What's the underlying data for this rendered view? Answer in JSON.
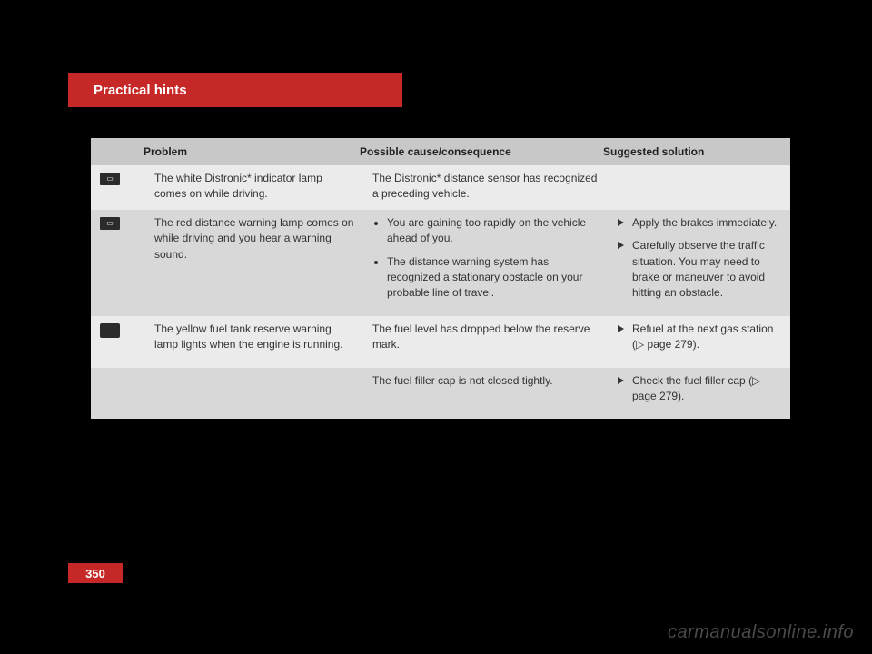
{
  "header": {
    "title": "Practical hints"
  },
  "table": {
    "columns": {
      "problem": "Problem",
      "cause": "Possible cause/consequence",
      "solution": "Suggested solution"
    },
    "rows": [
      {
        "icon": "distronic-white-icon",
        "shade": "light",
        "problem": "The white Distronic* indicator lamp comes on while driving.",
        "cause_plain": "The Distronic* distance sensor has recognized a preceding vehicle.",
        "solutions": []
      },
      {
        "icon": "distance-red-icon",
        "shade": "dark",
        "problem": "The red distance warning lamp comes on while driving and you hear a warning sound.",
        "causes": [
          "You are gaining too rapidly on the vehicle ahead of you.",
          "The distance warning system has recognized a stationary obstacle on your probable line of travel."
        ],
        "solutions": [
          "Apply the brakes immediately.",
          "Carefully observe the traffic situation. You may need to brake or maneuver to avoid hitting an obstacle."
        ]
      },
      {
        "icon": "fuel-reserve-icon",
        "shade": "light",
        "problem": "The yellow fuel tank reserve warning lamp lights when the engine is running.",
        "cause_plain": "The fuel level has dropped below the reserve mark.",
        "solutions": [
          "Refuel at the next gas station (▷ page 279)."
        ]
      },
      {
        "icon": "",
        "shade": "dark",
        "problem": "",
        "cause_plain": "The fuel filler cap is not closed tightly.",
        "solutions": [
          "Check the fuel filler cap (▷ page 279)."
        ]
      }
    ]
  },
  "page_number": "350",
  "watermark": "carmanualsonline.info",
  "colors": {
    "accent": "#c62828",
    "row_light": "#ebebeb",
    "row_dark": "#d8d8d8",
    "header_row": "#c8c8c8",
    "page_bg": "#000000",
    "text": "#333333"
  }
}
